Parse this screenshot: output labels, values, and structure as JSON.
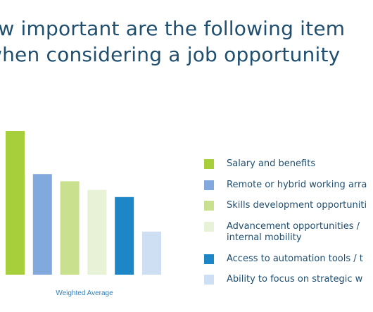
{
  "header": {
    "title_line_1": "ow important are the following item",
    "title_line_2": "when considering a job opportunity"
  },
  "chart_data": {
    "type": "bar",
    "x_axis_label": "Weighted Average",
    "ylim": [
      0,
      100
    ],
    "categories": [
      "Salary and benefits",
      "Remote or hybrid working arra",
      "Skills development opportuniti",
      "Advancement opportunities / internal mobility",
      "Access to automation tools / t",
      "Ability to focus on strategic w"
    ],
    "values": [
      100,
      70,
      65,
      59,
      54,
      30
    ],
    "colors": [
      "#a6cf3b",
      "#82a9dd",
      "#c9e08f",
      "#e8f2d6",
      "#1c86c7",
      "#cfdff3"
    ],
    "legend_position": "right",
    "grid": false
  },
  "legend": {
    "items": [
      {
        "lines": [
          "Salary and benefits"
        ],
        "color": "#a6cf3b"
      },
      {
        "lines": [
          "Remote or hybrid working arra"
        ],
        "color": "#82a9dd"
      },
      {
        "lines": [
          "Skills development opportuniti"
        ],
        "color": "#c9e08f"
      },
      {
        "lines": [
          "Advancement opportunities /",
          "internal mobility"
        ],
        "color": "#e8f2d6"
      },
      {
        "lines": [
          "Access to automation tools / t"
        ],
        "color": "#1c86c7"
      },
      {
        "lines": [
          "Ability to focus on strategic w"
        ],
        "color": "#cfdff3"
      }
    ]
  }
}
